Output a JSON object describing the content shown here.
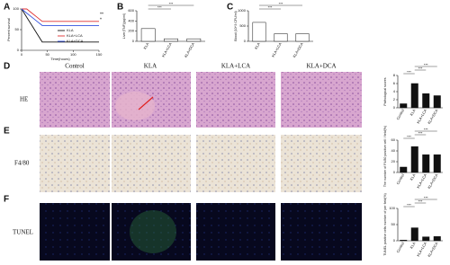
{
  "letters": [
    "A",
    "B",
    "C",
    "D",
    "E",
    "F"
  ],
  "image_panel": {
    "columns": [
      "Control",
      "KLA",
      "KLA+LCA",
      "KLA+DCA"
    ],
    "rows": [
      "HE",
      "F4/80",
      "TUNEL"
    ]
  },
  "chart_data": [
    {
      "type": "line",
      "x_label": "Time(hours)",
      "y_label": "Percent survival",
      "x": [
        0,
        10,
        20,
        30,
        40,
        150
      ],
      "series": [
        {
          "name": "KLA",
          "color": "#111111",
          "values": [
            100,
            80,
            60,
            40,
            20,
            20
          ]
        },
        {
          "name": "KLA+LCA",
          "color": "#e03030",
          "values": [
            100,
            100,
            90,
            80,
            70,
            70
          ]
        },
        {
          "name": "KLA+DCA",
          "color": "#3050e0",
          "values": [
            100,
            90,
            80,
            70,
            60,
            60
          ]
        }
      ],
      "xlim": [
        0,
        150
      ],
      "xticks": [
        0,
        50,
        100,
        150
      ],
      "ylim": [
        0,
        100
      ],
      "yticks": [
        0,
        50,
        100
      ],
      "annotations": [
        "**",
        "*"
      ]
    },
    {
      "type": "bar",
      "y_label": "Liver(TNF)(pg/ml)",
      "categories": [
        "KLA",
        "KLA+LCA",
        "KLA+DCA"
      ],
      "values": [
        250,
        50,
        50
      ],
      "color": "#ffffff",
      "ylim": [
        0,
        600
      ],
      "yticks": [
        0,
        200,
        400,
        600
      ],
      "annotations": [
        "***",
        "***"
      ]
    },
    {
      "type": "bar",
      "y_label": "Blood (10^3 CFU/ml)",
      "categories": [
        "KLA",
        "KLA+LCA",
        "KLA+DCA"
      ],
      "values": [
        620,
        250,
        250
      ],
      "color": "#ffffff",
      "ylim": [
        0,
        1000
      ],
      "yticks": [
        0,
        500,
        1000
      ],
      "annotations": [
        "***",
        "***"
      ]
    },
    {
      "type": "bar",
      "y_label": "Pathological scores",
      "categories": [
        "Control",
        "KLA",
        "KLA+LCA",
        "KLA+DCA"
      ],
      "values": [
        1,
        6,
        3.5,
        3
      ],
      "color": "#111111",
      "ylim": [
        0,
        8
      ],
      "yticks": [
        0,
        2,
        4,
        6,
        8
      ],
      "annotations": [
        "***",
        "***",
        "***"
      ]
    },
    {
      "type": "bar",
      "y_label": "The number of F4/80 positive cell / field(%)",
      "categories": [
        "Control",
        "KLA",
        "KLA+LCA",
        "KLA+DCA"
      ],
      "values": [
        10,
        48,
        33,
        33
      ],
      "color": "#111111",
      "ylim": [
        0,
        60
      ],
      "yticks": [
        0,
        20,
        40,
        60
      ],
      "annotations": [
        "***",
        "***",
        "***"
      ]
    },
    {
      "type": "bar",
      "y_label": "TUNEL positive cells number of per field(%)",
      "categories": [
        "Control",
        "KLA",
        "KLA+LCA",
        "KLA+DCA"
      ],
      "values": [
        2,
        40,
        12,
        13
      ],
      "color": "#111111",
      "ylim": [
        0,
        100
      ],
      "yticks": [
        0,
        50,
        100
      ],
      "annotations": [
        "***",
        "***",
        "***"
      ]
    }
  ]
}
